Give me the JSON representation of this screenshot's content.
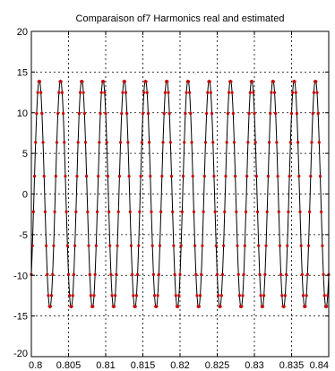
{
  "chart_data": {
    "type": "line",
    "title": "Comparaison of7  Harmonics real and estimated",
    "xlabel": "",
    "ylabel": "",
    "xlim": [
      0.8,
      0.84
    ],
    "ylim": [
      -20,
      20
    ],
    "xticks": [
      0.8,
      0.805,
      0.81,
      0.815,
      0.82,
      0.825,
      0.83,
      0.835,
      0.84
    ],
    "xtick_labels": [
      "0.8",
      "0.805",
      "0.81",
      "0.815",
      "0.82",
      "0.825",
      "0.83",
      "0.835",
      "0.84"
    ],
    "yticks": [
      -20,
      -15,
      -10,
      -5,
      0,
      5,
      10,
      15,
      20
    ],
    "ytick_labels": [
      "-20",
      "-15",
      "-10",
      "-5",
      "0",
      "5",
      "10",
      "15",
      "20"
    ],
    "grid": true,
    "grid_style": "dotted",
    "series": [
      {
        "style": "solid line",
        "color": "#000000",
        "signal": "sinusoid",
        "amplitude": 14,
        "offset": 0,
        "frequency_hz": 350,
        "phase_deg": -45
      },
      {
        "style": "dots",
        "color": "#cc0000",
        "signal": "sinusoid",
        "amplitude": 14,
        "offset": 0,
        "frequency_hz": 350,
        "phase_deg": -45,
        "samples_per_period": 20
      }
    ]
  }
}
